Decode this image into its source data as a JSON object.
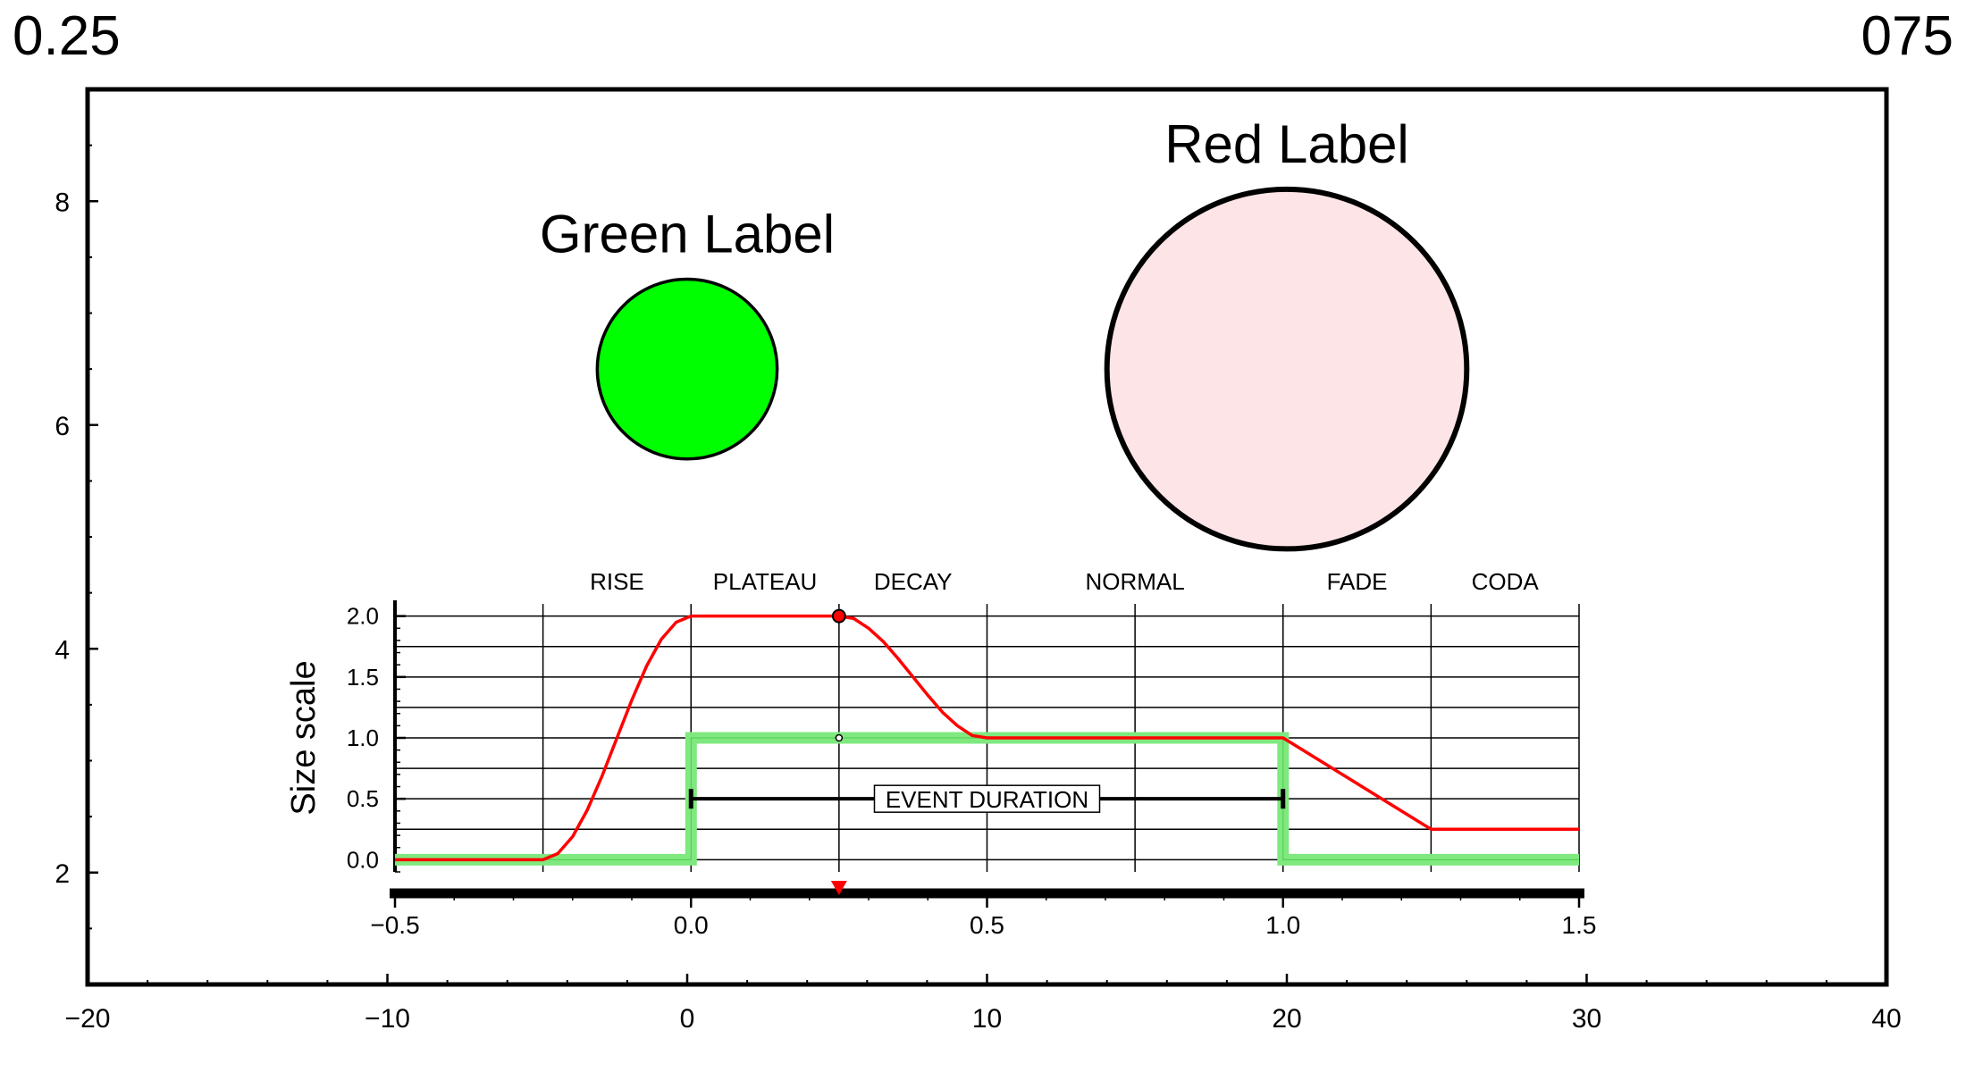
{
  "corner_labels": {
    "left": "0.25",
    "right": "075"
  },
  "colors": {
    "green_fill": "#00ff00",
    "red_fill": "#fde4e6",
    "red_curve": "#ff0000",
    "green_band": "#7fe87f",
    "black": "#000000"
  },
  "chart_data": [
    {
      "type": "scatter",
      "description_marks": "circle symbols with labels",
      "xlim": [
        -20,
        40
      ],
      "ylim": [
        1,
        9
      ],
      "x_ticks": [
        -20,
        -10,
        0,
        10,
        20,
        30,
        40
      ],
      "y_ticks": [
        2,
        4,
        6,
        8
      ],
      "x_tick_labels": [
        "−20",
        "−10",
        "0",
        "10",
        "20",
        "30",
        "40"
      ],
      "y_tick_labels": [
        "2",
        "4",
        "6",
        "8"
      ],
      "grid": false,
      "points": [
        {
          "label": "Green Label",
          "x": 0,
          "y": 6.5,
          "diameter": 6,
          "fill": "#00ff00"
        },
        {
          "label": "Red Label",
          "x": 20,
          "y": 6.5,
          "diameter": 12,
          "fill": "#fde4e6"
        }
      ]
    },
    {
      "type": "line",
      "ylabel": "Size scale",
      "xlim": [
        -0.5,
        1.5
      ],
      "ylim": [
        -0.1,
        2.1
      ],
      "x_ticks": [
        -0.5,
        0.0,
        0.5,
        1.0,
        1.5
      ],
      "x_tick_labels": [
        "−0.5",
        "0.0",
        "0.5",
        "1.0",
        "1.5"
      ],
      "y_ticks": [
        0.0,
        0.5,
        1.0,
        1.5,
        2.0
      ],
      "y_tick_labels": [
        "0.0",
        "0.5",
        "1.0",
        "1.5",
        "2.0"
      ],
      "grid": true,
      "phases": [
        {
          "label": "RISE",
          "start": -0.25,
          "end": 0.0
        },
        {
          "label": "PLATEAU",
          "start": 0.0,
          "end": 0.25
        },
        {
          "label": "DECAY",
          "start": 0.25,
          "end": 0.5
        },
        {
          "label": "NORMAL",
          "start": 0.5,
          "end": 1.0
        },
        {
          "label": "FADE",
          "start": 1.0,
          "end": 1.25
        },
        {
          "label": "CODA",
          "start": 1.25,
          "end": 1.5
        }
      ],
      "event_duration": {
        "label": "EVENT DURATION",
        "start": 0.0,
        "end": 1.0,
        "y": 0.5
      },
      "current_time": 0.25,
      "series": [
        {
          "color": "#ff0000",
          "x": [
            -0.5,
            -0.25,
            -0.225,
            -0.2,
            -0.175,
            -0.15,
            -0.125,
            -0.1,
            -0.075,
            -0.05,
            -0.025,
            0.0,
            0.25,
            0.275,
            0.3,
            0.325,
            0.35,
            0.375,
            0.4,
            0.425,
            0.45,
            0.475,
            0.5,
            1.0,
            1.25,
            1.5
          ],
          "y": [
            0.0,
            0.0,
            0.05,
            0.19,
            0.41,
            0.69,
            1.0,
            1.31,
            1.59,
            1.81,
            1.95,
            2.0,
            2.0,
            1.98,
            1.9,
            1.79,
            1.65,
            1.5,
            1.35,
            1.21,
            1.1,
            1.02,
            1.0,
            1.0,
            0.25,
            0.25
          ]
        },
        {
          "color": "#7fe87f",
          "x": [
            -0.5,
            0.0,
            0.0,
            1.0,
            1.0,
            1.5
          ],
          "y": [
            0.0,
            0.0,
            1.0,
            1.0,
            0.0,
            0.0
          ]
        }
      ],
      "markers": [
        {
          "x": 0.25,
          "y": 2.0,
          "color": "#ff0000"
        },
        {
          "x": 0.25,
          "y": 1.0,
          "color": "#00ff00"
        }
      ]
    }
  ]
}
